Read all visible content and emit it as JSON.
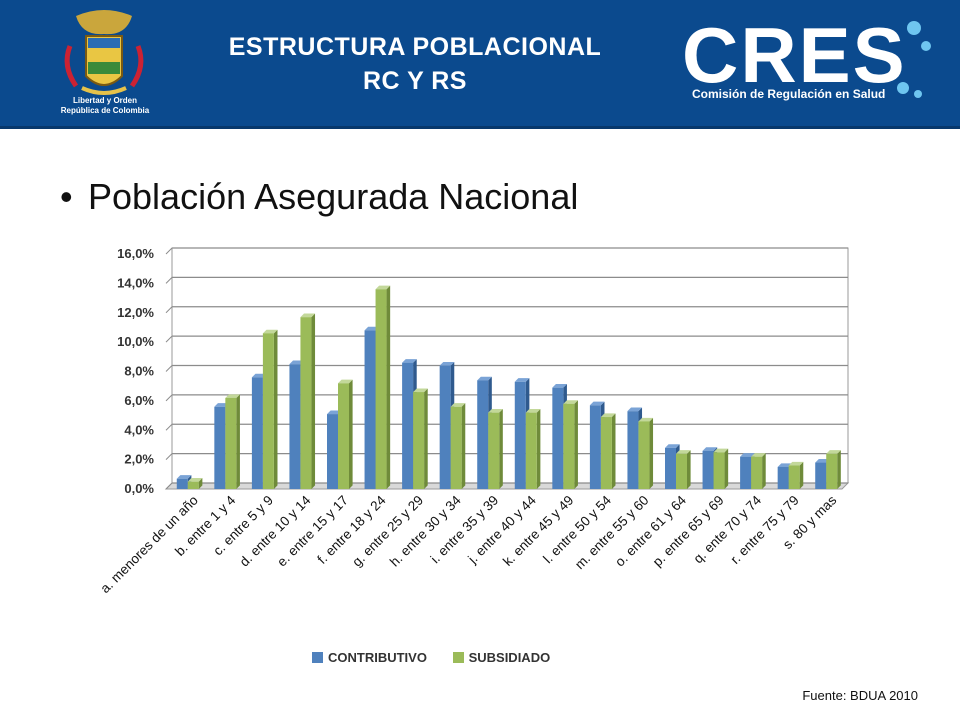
{
  "header": {
    "title_line1": "ESTRUCTURA POBLACIONAL",
    "title_line2": "RC Y RS",
    "motto_line1": "Libertad y Orden",
    "motto_line2": "República de Colombia",
    "logo_text": "CRES",
    "logo_subtitle": "Comisión de Regulación en Salud",
    "bg_color": "#0b4a8e"
  },
  "bullet": {
    "symbol": "•",
    "text": "Población Asegurada Nacional"
  },
  "source": "Fuente: BDUA 2010",
  "chart_data": {
    "type": "bar",
    "categories": [
      "a. menores de un año",
      "b. entre 1 y 4",
      "c. entre 5 y 9",
      "d. entre 10 y 14",
      "e. entre 15 y 17",
      "f. entre 18 y 24",
      "g. entre 25 y 29",
      "h. entre 30 y 34",
      "i. entre 35 y 39",
      "j. entre 40 y 44",
      "k. entre 45 y 49",
      "l. entre 50 y 54",
      "m. entre 55 y 60",
      "o. entre 61 y 64",
      "p. entre 65 y 69",
      "q. ente 70 y 74",
      "r. entre 75 y 79",
      "s. 80 y mas"
    ],
    "series": [
      {
        "name": "CONTRIBUTIVO",
        "color": "#4f81bd",
        "values": [
          0.7,
          5.6,
          7.6,
          8.5,
          5.1,
          10.8,
          8.6,
          8.4,
          7.4,
          7.3,
          6.9,
          5.7,
          5.3,
          2.8,
          2.6,
          2.2,
          1.5,
          1.8
        ]
      },
      {
        "name": "SUBSIDIADO",
        "color": "#9bbb59",
        "values": [
          0.5,
          6.2,
          10.6,
          11.7,
          7.2,
          13.6,
          6.6,
          5.6,
          5.2,
          5.2,
          5.8,
          4.9,
          4.6,
          2.4,
          2.5,
          2.2,
          1.6,
          2.4
        ]
      }
    ],
    "yticks": [
      "0,0%",
      "2,0%",
      "4,0%",
      "6,0%",
      "8,0%",
      "10,0%",
      "12,0%",
      "14,0%",
      "16,0%"
    ],
    "ylim": [
      0,
      16
    ],
    "grid": true,
    "legend_position": "bottom"
  }
}
